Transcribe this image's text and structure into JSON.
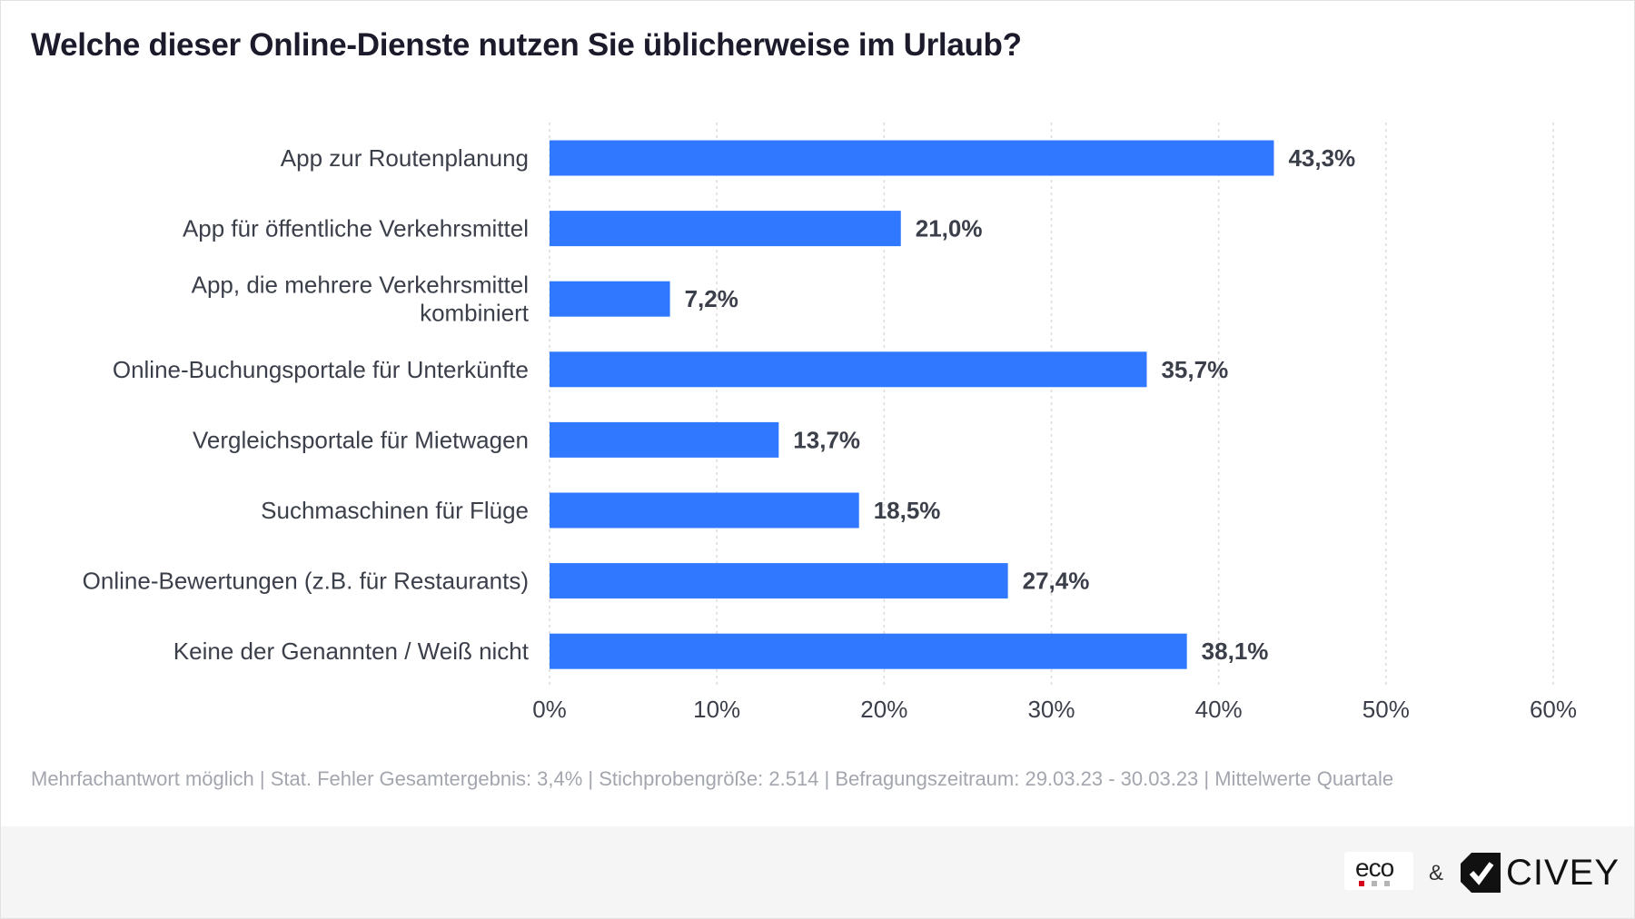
{
  "title": "Welche dieser Online-Dienste nutzen Sie üblicherweise im Urlaub?",
  "chart_data": {
    "type": "bar",
    "orientation": "horizontal",
    "categories": [
      [
        "App zur Routenplanung"
      ],
      [
        "App für öffentliche Verkehrsmittel"
      ],
      [
        "App, die mehrere Verkehrsmittel",
        "kombiniert"
      ],
      [
        "Online-Buchungsportale für Unterkünfte"
      ],
      [
        "Vergleichsportale für Mietwagen"
      ],
      [
        "Suchmaschinen für Flüge"
      ],
      [
        "Online-Bewertungen (z.B. für Restaurants)"
      ],
      [
        "Keine der Genannten / Weiß nicht"
      ]
    ],
    "values": [
      43.3,
      21.0,
      7.2,
      35.7,
      13.7,
      18.5,
      27.4,
      38.1
    ],
    "value_labels": [
      "43,3%",
      "21,0%",
      "7,2%",
      "35,7%",
      "13,7%",
      "18,5%",
      "27,4%",
      "38,1%"
    ],
    "xlim": [
      0,
      60
    ],
    "xticks": [
      0,
      10,
      20,
      30,
      40,
      50,
      60
    ],
    "xtick_labels": [
      "0%",
      "10%",
      "20%",
      "30%",
      "40%",
      "50%",
      "60%"
    ],
    "grid": "vertical dotted",
    "bar_color": "#2f78ff"
  },
  "footnote": "Mehrfachantwort möglich | Stat. Fehler Gesamtergebnis: 3,4% | Stichprobengröße: 2.514 | Befragungszeitraum: 29.03.23 - 30.03.23 | Mittelwerte Quartale",
  "footer": {
    "logo_eco": "eco",
    "ampersand": "&",
    "logo_civey": "CIVEY"
  }
}
